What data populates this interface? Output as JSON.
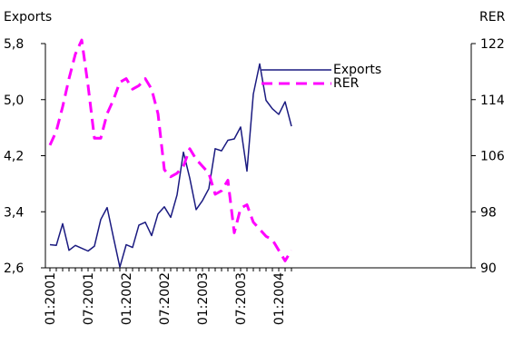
{
  "chart_data": {
    "type": "line",
    "legend_position": "top-right",
    "grid": false,
    "left_axis": {
      "title": "Exports",
      "ylim": [
        2.6,
        5.8
      ],
      "ticks": [
        2.6,
        3.4,
        4.2,
        5.0,
        5.8
      ],
      "tick_labels": [
        "2,6",
        "3,4",
        "4,2",
        "5,0",
        "5,8"
      ]
    },
    "right_axis": {
      "title": "RER",
      "ylim": [
        90,
        122
      ],
      "ticks": [
        90,
        98,
        106,
        114,
        122
      ],
      "tick_labels": [
        "90",
        "98",
        "106",
        "114",
        "122"
      ]
    },
    "x_tick_labels": [
      "01:2001",
      "07:2001",
      "01:2002",
      "07:2002",
      "01:2003",
      "07:2003",
      "01:2004"
    ],
    "x_tick_index": [
      0,
      6,
      12,
      18,
      24,
      30,
      36
    ],
    "series": [
      {
        "name": "Exports",
        "axis": "left",
        "color": "#1a1a80",
        "style": "solid",
        "values": [
          2.93,
          2.92,
          3.23,
          2.85,
          2.92,
          2.88,
          2.84,
          2.91,
          3.29,
          3.46,
          3.03,
          2.61,
          2.93,
          2.89,
          3.21,
          3.25,
          3.06,
          3.37,
          3.47,
          3.32,
          3.64,
          4.25,
          3.88,
          3.43,
          3.56,
          3.73,
          4.3,
          4.27,
          4.42,
          4.44,
          4.61,
          3.98,
          5.08,
          5.51,
          4.99,
          4.87,
          4.79,
          4.97,
          4.62
        ]
      },
      {
        "name": "RER",
        "axis": "right",
        "color": "#ff00ff",
        "style": "dashed",
        "values": [
          107.5,
          109.5,
          113,
          117,
          120.5,
          122.5,
          116,
          108.5,
          108.5,
          112,
          114,
          116.5,
          117,
          115.5,
          116,
          117,
          115.5,
          112,
          104,
          103,
          103.5,
          104.5,
          107,
          105.5,
          104.5,
          103.5,
          100.5,
          101,
          102.5,
          95,
          98.5,
          99,
          96.5,
          95.5,
          94.5,
          94,
          92.5,
          91,
          92.5
        ]
      }
    ]
  }
}
